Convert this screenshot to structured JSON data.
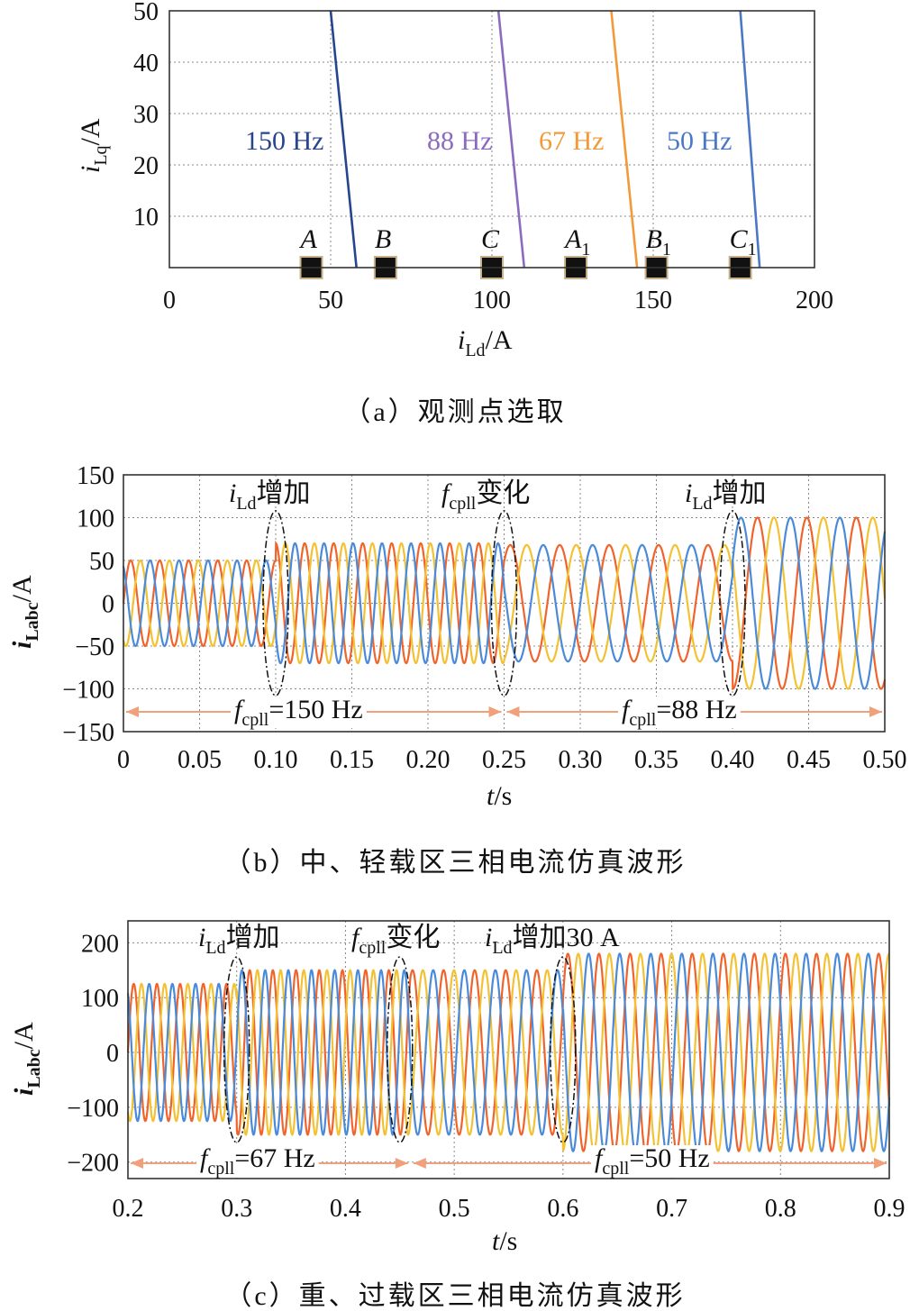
{
  "charts": {
    "a": {
      "caption": "（a）观测点选取",
      "xlabel_main": "i",
      "xlabel_sub": "Ld",
      "xlabel_unit": "/A",
      "ylabel_main": "i",
      "ylabel_sub": "Lq",
      "ylabel_unit": "/A"
    },
    "b": {
      "caption": "（b）中、轻载区三相电流仿真波形",
      "xlabel_main": "t",
      "xlabel_unit": "/s",
      "ylabel_main": "i",
      "ylabel_sub": "Labc",
      "ylabel_unit": "/A",
      "ann1_main": "i",
      "ann1_sub": "Ld",
      "ann1_cn": "增加",
      "ann2_main": "f",
      "ann2_sub": "cpll",
      "ann2_cn": "变化",
      "ann3_main": "i",
      "ann3_sub": "Ld",
      "ann3_cn": "增加",
      "band1_main": "f",
      "band1_sub": "cpll",
      "band1_val": "=150 Hz",
      "band2_main": "f",
      "band2_sub": "cpll",
      "band2_val": "=88 Hz"
    },
    "c": {
      "caption": "（c）重、过载区三相电流仿真波形",
      "xlabel_main": "t",
      "xlabel_unit": "/s",
      "ylabel_main": "i",
      "ylabel_sub": "Labc",
      "ylabel_unit": "/A",
      "ann1_main": "i",
      "ann1_sub": "Ld",
      "ann1_cn": "增加",
      "ann2_main": "f",
      "ann2_sub": "cpll",
      "ann2_cn": "变化",
      "ann3_main": "i",
      "ann3_sub": "Ld",
      "ann3_cn": "增加30 A",
      "band1_main": "f",
      "band1_sub": "cpll",
      "band1_val": "=67 Hz",
      "band2_main": "f",
      "band2_sub": "cpll",
      "band2_val": "=50 Hz"
    }
  },
  "chart_data": [
    {
      "type": "line",
      "xlim": [
        0,
        200
      ],
      "ylim": [
        0,
        50
      ],
      "xticks": [
        "0",
        "50",
        "100",
        "150",
        "200"
      ],
      "yticks": [
        "10",
        "20",
        "30",
        "40",
        "50"
      ],
      "grid": true,
      "series": [
        {
          "name": "150 Hz",
          "color": "#27448f",
          "x": [
            50,
            58
          ],
          "y": [
            50,
            0
          ]
        },
        {
          "name": "88 Hz",
          "color": "#8b6bc0",
          "x": [
            102,
            110
          ],
          "y": [
            50,
            0
          ]
        },
        {
          "name": "67 Hz",
          "color": "#f29a3a",
          "x": [
            137,
            145
          ],
          "y": [
            50,
            0
          ]
        },
        {
          "name": "50 Hz",
          "color": "#4a78c7",
          "x": [
            177,
            183
          ],
          "y": [
            50,
            0
          ]
        }
      ],
      "points": [
        {
          "label": "A",
          "sub": "",
          "x": 44,
          "y": 0
        },
        {
          "label": "B",
          "sub": "",
          "x": 67,
          "y": 0
        },
        {
          "label": "C",
          "sub": "",
          "x": 100,
          "y": 0
        },
        {
          "label": "A",
          "sub": "1",
          "x": 126,
          "y": 0
        },
        {
          "label": "B",
          "sub": "1",
          "x": 151,
          "y": 0
        },
        {
          "label": "C",
          "sub": "1",
          "x": 177,
          "y": 0
        }
      ]
    },
    {
      "type": "line",
      "xlim": [
        0,
        0.5
      ],
      "ylim": [
        -150,
        150
      ],
      "xticks": [
        "0",
        "0.05",
        "0.10",
        "0.15",
        "0.20",
        "0.25",
        "0.30",
        "0.35",
        "0.40",
        "0.45",
        "0.50"
      ],
      "yticks": [
        "150",
        "100",
        "50",
        "0",
        "−50",
        "−100",
        "−150"
      ],
      "grid": true,
      "phase_colors": [
        "#f0642c",
        "#f2c233",
        "#4a8ad8"
      ],
      "segments": [
        {
          "t0": 0,
          "t1": 0.1,
          "amplitude": 50
        },
        {
          "t0": 0.1,
          "t1": 0.25,
          "amplitude": 70
        },
        {
          "t0": 0.25,
          "t1": 0.4,
          "amplitude": 68
        },
        {
          "t0": 0.4,
          "t1": 0.5,
          "amplitude": 100
        }
      ],
      "frequency_bands": [
        {
          "from": 0,
          "to": 0.25,
          "value": 150
        },
        {
          "from": 0.25,
          "to": 0.5,
          "value": 88
        }
      ],
      "events": [
        0.1,
        0.25,
        0.4
      ]
    },
    {
      "type": "line",
      "xlim": [
        0.2,
        0.9
      ],
      "ylim": [
        -230,
        240
      ],
      "xticks": [
        "0.2",
        "0.3",
        "0.4",
        "0.5",
        "0.6",
        "0.7",
        "0.8",
        "0.9"
      ],
      "yticks": [
        "200",
        "100",
        "0",
        "−100",
        "−200"
      ],
      "grid": true,
      "phase_colors": [
        "#f0642c",
        "#f2c233",
        "#4a8ad8"
      ],
      "segments": [
        {
          "t0": 0.2,
          "t1": 0.3,
          "amplitude": 125
        },
        {
          "t0": 0.3,
          "t1": 0.45,
          "amplitude": 150
        },
        {
          "t0": 0.45,
          "t1": 0.6,
          "amplitude": 150
        },
        {
          "t0": 0.6,
          "t1": 0.9,
          "amplitude": 180
        }
      ],
      "frequency_bands": [
        {
          "from": 0.2,
          "to": 0.46,
          "value": 67
        },
        {
          "from": 0.46,
          "to": 0.9,
          "value": 50
        }
      ],
      "events": [
        0.3,
        0.45,
        0.6
      ]
    }
  ]
}
